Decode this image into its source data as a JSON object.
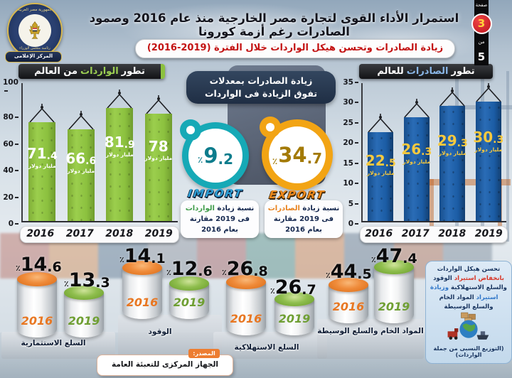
{
  "header": {
    "logo": {
      "top_text": "جمهورية مصر العربية",
      "mid_text": "رئاسة مجلس الوزراء",
      "banner": "المركز الإعلامى"
    },
    "title": "استمرار الأداء القوى لتجارة مصر الخارجية منذ عام 2016 وصمود الصادرات رغم أزمة كورونا",
    "subtitle": "زيادة الصادرات وتحسن هيكل الواردات خلال الفترة (2019-2016)",
    "page": {
      "label": "صفحة",
      "number": "3",
      "of": "من",
      "total": "5"
    }
  },
  "chart_data": [
    {
      "type": "bar",
      "id": "imports-from-world",
      "title": "تطور الواردات من العالم",
      "title_parts": {
        "pre": "تطور",
        "highlight": "الواردات",
        "post": "من العالم"
      },
      "categories": [
        "2016",
        "2017",
        "2018",
        "2019"
      ],
      "values": [
        71.4,
        66.6,
        81.9,
        78
      ],
      "unit": "مليار دولار",
      "ylim": [
        0,
        100
      ],
      "yticks": [
        0,
        20,
        40,
        60,
        80,
        100
      ],
      "bar_color": "#8cc13f",
      "grid": false,
      "legend": "none"
    },
    {
      "type": "bar",
      "id": "exports-to-world",
      "title": "تطور الصادرات للعالم",
      "title_parts": {
        "pre": "تطور",
        "highlight": "الصادرات",
        "post": "للعالم"
      },
      "categories": [
        "2016",
        "2017",
        "2018",
        "2019"
      ],
      "values": [
        22.5,
        26.3,
        29.3,
        30.3
      ],
      "unit": "مليار دولار",
      "ylim": [
        0,
        35
      ],
      "yticks": [
        0,
        5,
        10,
        15,
        20,
        25,
        30,
        35
      ],
      "bar_color": "#1b5ca4",
      "grid": false,
      "legend": "none"
    },
    {
      "type": "bar",
      "id": "imports-structure-comparison",
      "title": "(التوزيع النسبى من جملة الواردات)",
      "categories": [
        "السلع الاستثمارية",
        "الوقود",
        "السلع الاستهلاكية",
        "المواد الخام والسلع الوسيطة"
      ],
      "series": [
        {
          "name": "2016",
          "values": [
            14.6,
            14.1,
            26.8,
            44.5
          ],
          "color": "#e8791f"
        },
        {
          "name": "2019",
          "values": [
            13.3,
            12.6,
            26.7,
            47.4
          ],
          "color": "#7cb03c"
        }
      ],
      "unit": "٪"
    }
  ],
  "middle": {
    "bubble": {
      "line1": "زيادة الصادرات بمعدلات",
      "line2": "تفوق الزيادة فى الواردات"
    },
    "import": {
      "percent_sign": "٪",
      "value": 9.2,
      "banner": "IMPORT",
      "caption_pre": "نسبة زيادة",
      "caption_word": "الواردات",
      "caption_post": "فى 2019 مقارنة بعام 2016"
    },
    "export": {
      "percent_sign": "٪",
      "value": 34.7,
      "banner": "EXPORT",
      "caption_pre": "نسبة زيادة",
      "caption_word": "الصادرات",
      "caption_post": "فى 2019 مقارنة بعام 2016"
    }
  },
  "bottom": {
    "percent_sign": "٪",
    "info": {
      "seg1": "تحسن هيكل الواردات",
      "seg2": "بانخفاض استيراد",
      "seg3": "الوقود والسلع الاستهلاكية",
      "seg4": "وزيادة استيراد",
      "seg5": "المواد الخام والسلع الوسيطة",
      "caption": "(التوزيع النسبى من جملة الواردات)"
    },
    "source": {
      "tab": "المصدر:",
      "text": "الجهاز المركزى للتعبئة العامة والإحصاء"
    }
  },
  "colors": {
    "imports_bar": "#8cc13f",
    "exports_bar": "#1b5ca4",
    "teal_gauge": "#16a9b6",
    "gold_gauge": "#f2a414",
    "orange_2016": "#e8791f",
    "green_2019": "#7cb03c",
    "subtitle_red": "#c31212",
    "page_circle_red": "#bd161e",
    "page_number_yellow": "#ffd43a"
  }
}
